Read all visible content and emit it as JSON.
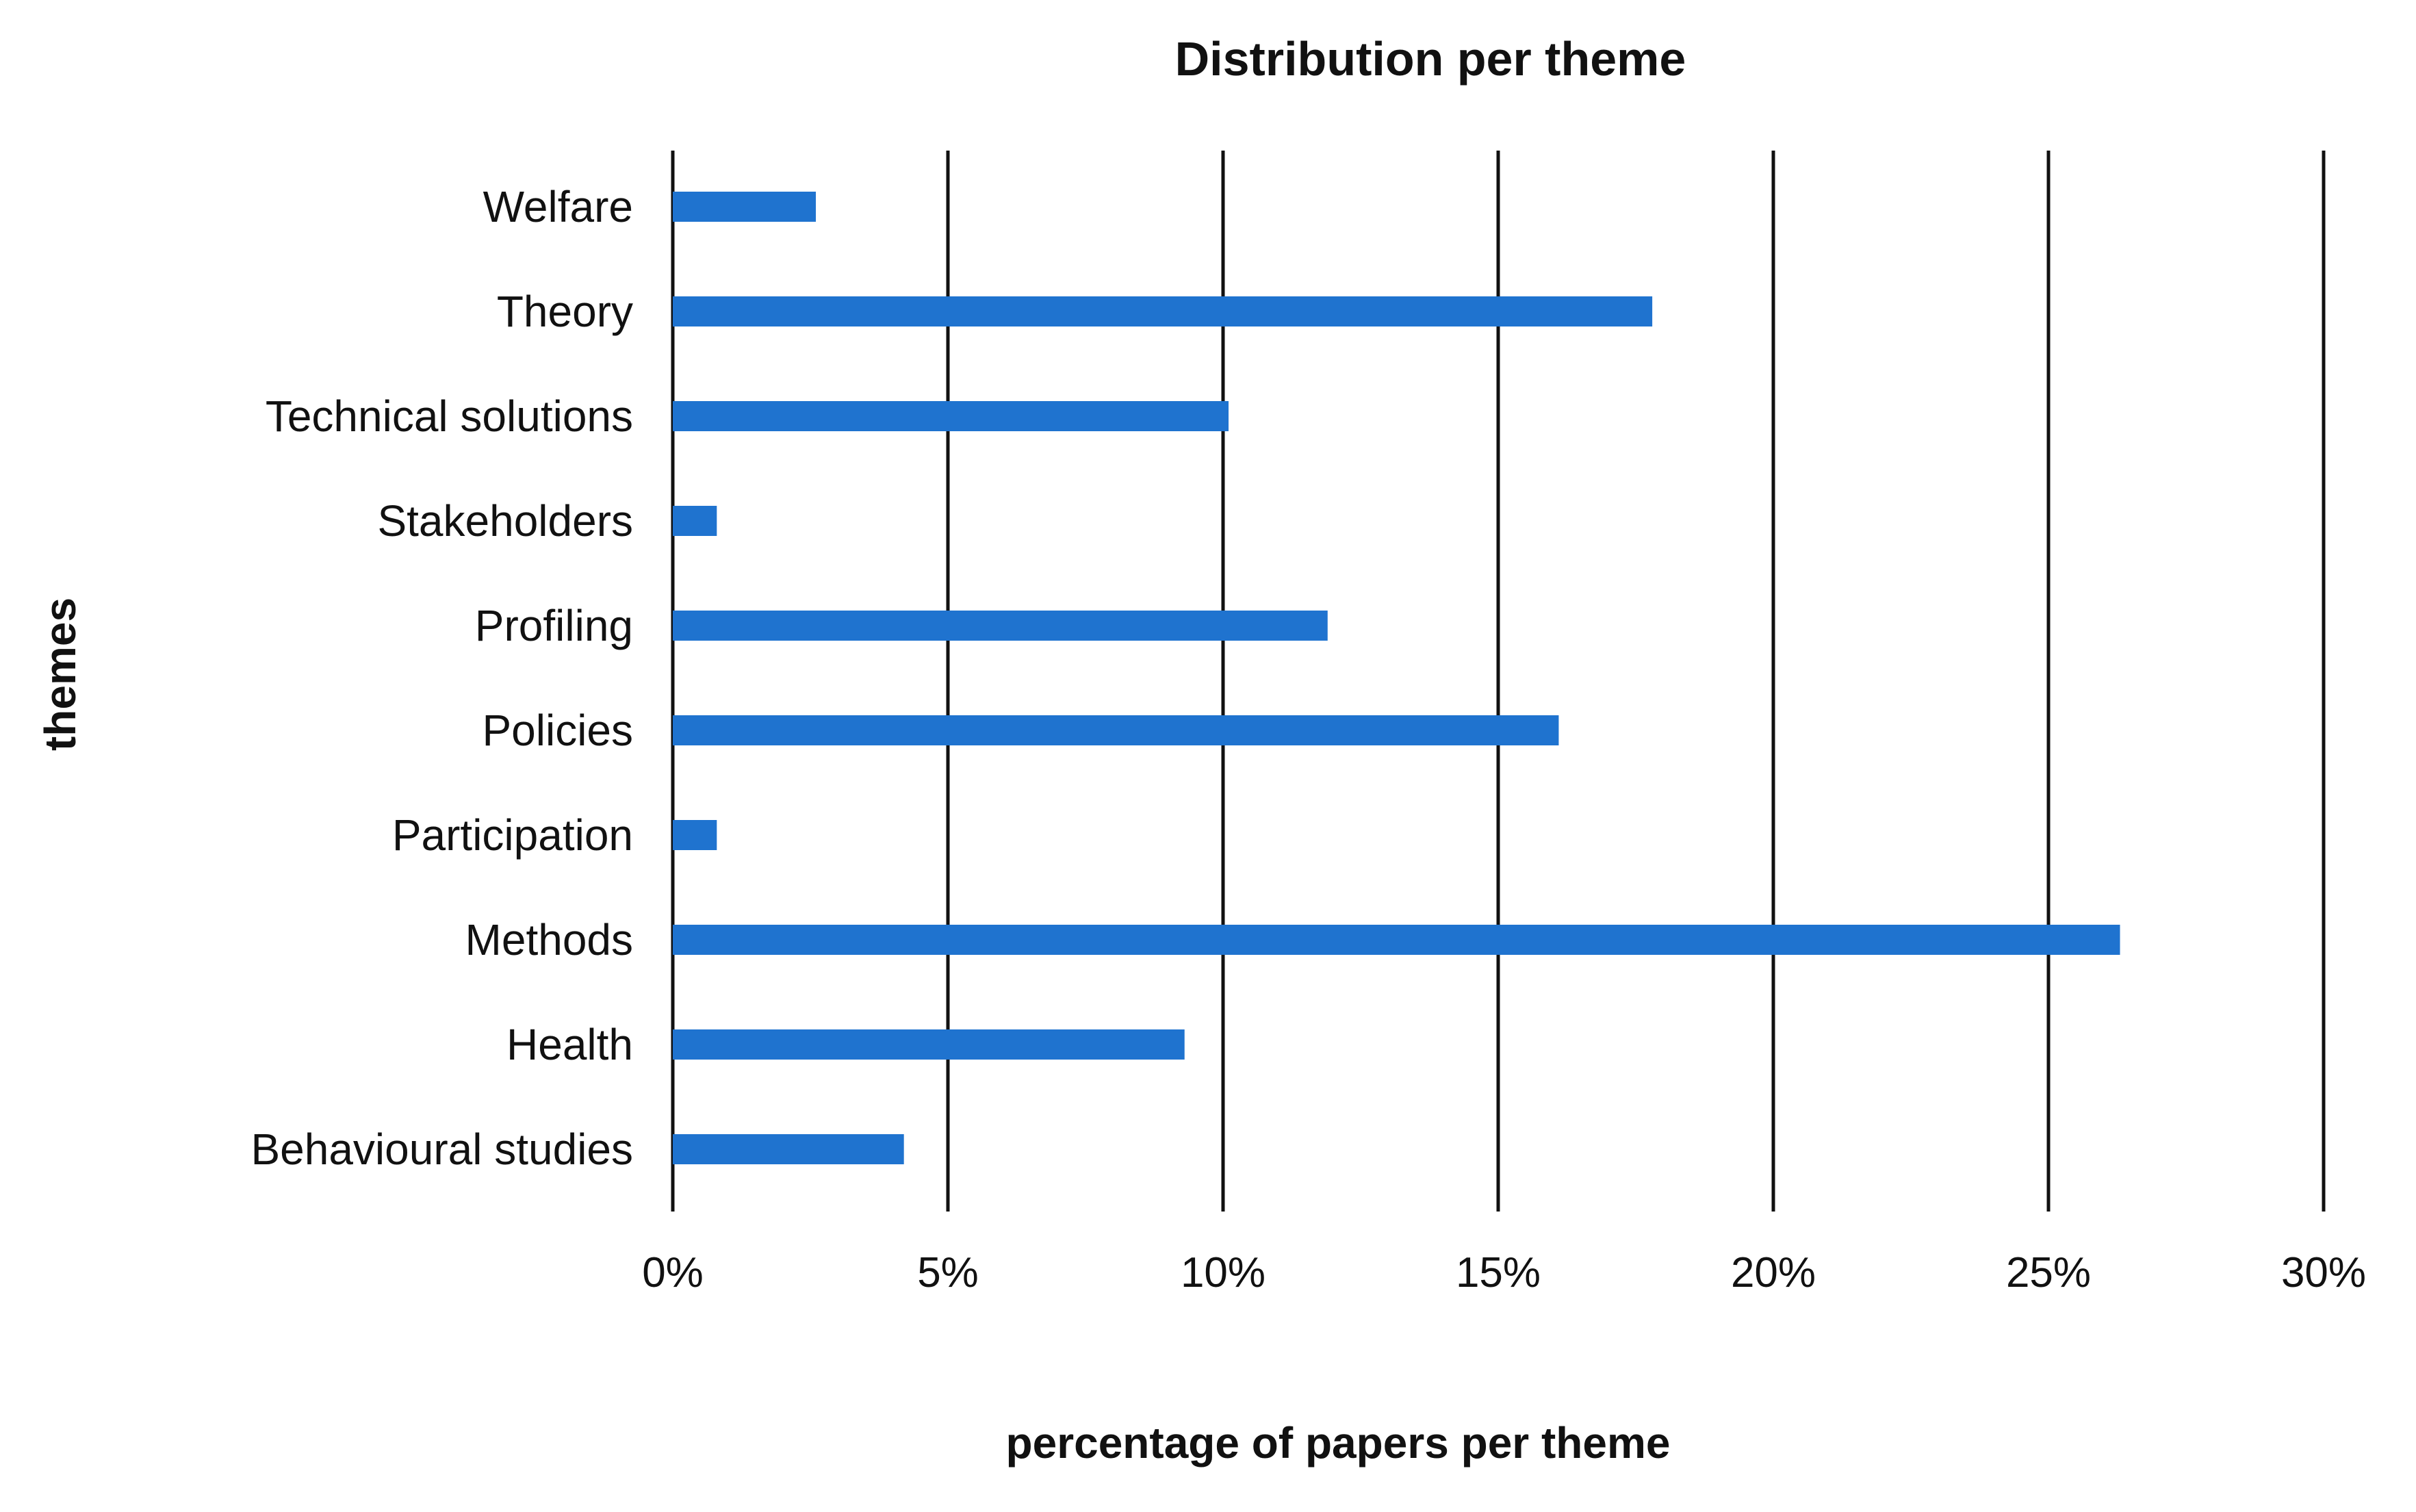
{
  "chart_data": {
    "type": "bar",
    "orientation": "horizontal",
    "title": "Distribution per theme",
    "xlabel": "percentage of papers per theme",
    "ylabel": "themes",
    "categories": [
      "Welfare",
      "Theory",
      "Technical solutions",
      "Stakeholders",
      "Profiling",
      "Policies",
      "Participation",
      "Methods",
      "Health",
      "Behavioural studies"
    ],
    "values": [
      2.6,
      17.8,
      10.1,
      0.8,
      11.9,
      16.1,
      0.8,
      26.3,
      9.3,
      4.2
    ],
    "value_unit": "%",
    "xlim": [
      0,
      30
    ],
    "xticks": [
      0,
      5,
      10,
      15,
      20,
      25,
      30
    ],
    "xtick_labels": [
      "0%",
      "5%",
      "10%",
      "15%",
      "20%",
      "25%",
      "30%"
    ],
    "grid": "vertical",
    "legend": "none",
    "bar_color": "#1f73cf",
    "grid_color": "#111111"
  }
}
